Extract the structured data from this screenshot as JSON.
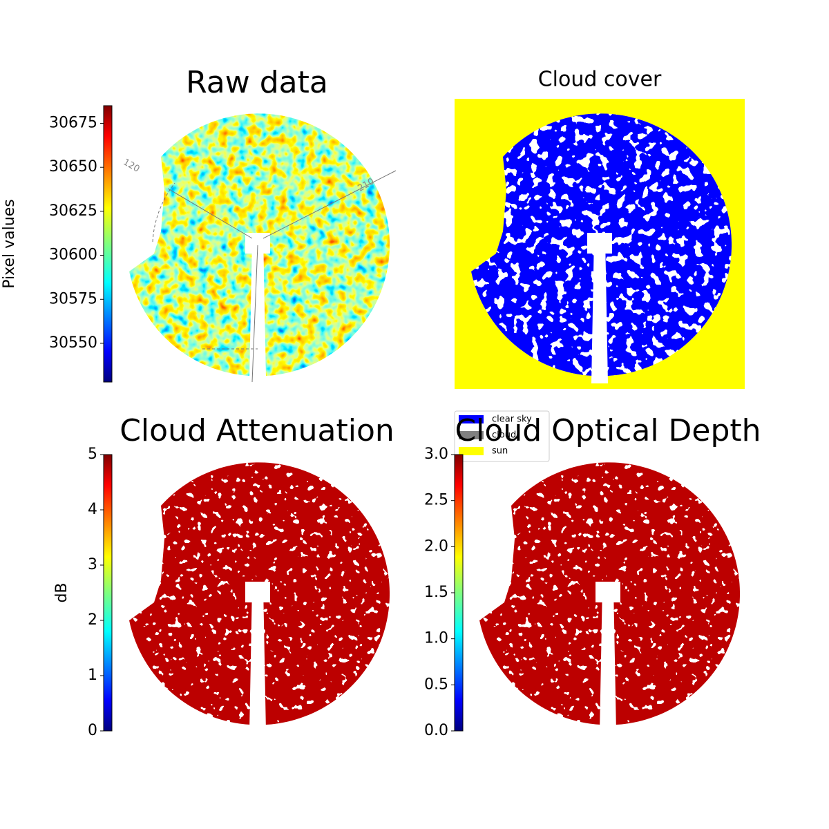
{
  "chart_data": [
    {
      "type": "image",
      "title": "Raw data",
      "annotations": [
        "120",
        "210"
      ],
      "colorbar": {
        "label": "Pixel values",
        "colormap": "jet",
        "lim": [
          30528,
          30685
        ],
        "ticks": [
          30550,
          30575,
          30600,
          30625,
          30650,
          30675
        ]
      }
    },
    {
      "type": "categorical-image",
      "title": "Cloud cover",
      "background": "#ffff00",
      "legend": [
        {
          "name": "clear sky",
          "color": "#0000ff"
        },
        {
          "name": "cloud",
          "color": "#808080"
        },
        {
          "name": "sun",
          "color": "#ffff00"
        }
      ]
    },
    {
      "type": "image",
      "title": "Cloud Attenuation",
      "colorbar": {
        "label": "dB",
        "colormap": "jet",
        "lim": [
          0,
          5
        ],
        "ticks": [
          0,
          1,
          2,
          3,
          4,
          5
        ]
      }
    },
    {
      "type": "image",
      "title": "Cloud Optical Depth",
      "colorbar": {
        "colormap": "jet",
        "lim": [
          0,
          3
        ],
        "ticks": [
          {
            "value": 0,
            "label": "0.0"
          },
          {
            "value": 0.5,
            "label": "0.5"
          },
          {
            "value": 1,
            "label": "1.0"
          },
          {
            "value": 1.5,
            "label": "1.5"
          },
          {
            "value": 2,
            "label": "2.0"
          },
          {
            "value": 2.5,
            "label": "2.5"
          },
          {
            "value": 3,
            "label": "3.0"
          }
        ]
      }
    }
  ]
}
